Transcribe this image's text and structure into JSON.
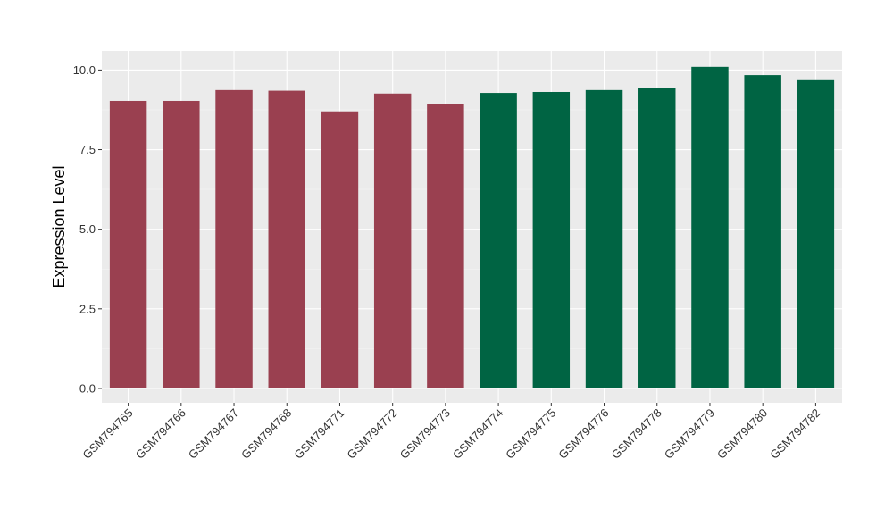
{
  "chart_data": {
    "type": "bar",
    "title": "",
    "xlabel": "",
    "ylabel": "Expression Level",
    "ylim": [
      -0.45,
      10.6
    ],
    "yticks": [
      0.0,
      2.5,
      5.0,
      7.5,
      10.0
    ],
    "ytick_labels": [
      "0.0",
      "2.5",
      "5.0",
      "7.5",
      "10.0"
    ],
    "grid": true,
    "legend": "none",
    "categories": [
      "GSM794765",
      "GSM794766",
      "GSM794767",
      "GSM794768",
      "GSM794771",
      "GSM794772",
      "GSM794773",
      "GSM794774",
      "GSM794775",
      "GSM794776",
      "GSM794778",
      "GSM794779",
      "GSM794780",
      "GSM794782"
    ],
    "values": [
      9.03,
      9.03,
      9.37,
      9.35,
      8.7,
      9.26,
      8.93,
      9.28,
      9.31,
      9.37,
      9.43,
      10.1,
      9.84,
      9.68
    ],
    "group_index": [
      0,
      0,
      0,
      0,
      0,
      0,
      0,
      1,
      1,
      1,
      1,
      1,
      1,
      1
    ],
    "colors": {
      "group_colors": [
        "#9A4050",
        "#006443"
      ],
      "panel_background": "#EBEBEB",
      "grid_major": "#FFFFFF",
      "grid_minor": "#F5F5F5"
    }
  }
}
